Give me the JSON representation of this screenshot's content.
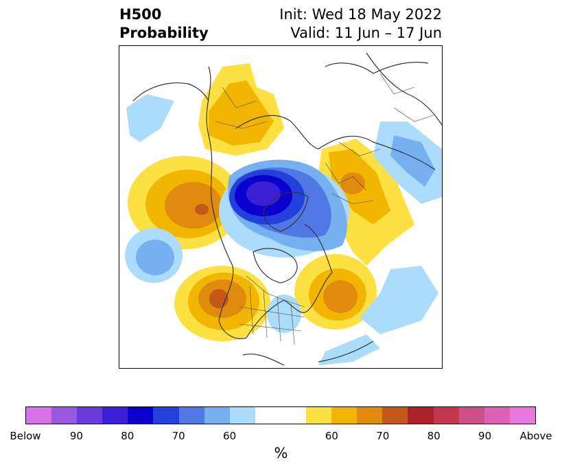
{
  "title": {
    "left_line1": "H500",
    "left_line2": "Probability",
    "right_line1": "Init: Wed 18 May 2022",
    "right_line2": "Valid: 11 Jun – 17 Jun"
  },
  "map": {
    "region": "Northern Hemisphere polar projection",
    "anomalies": [
      {
        "label": "negative center over Arctic/Greenland",
        "category": "Below",
        "peak_percent": 85
      },
      {
        "label": "negative over Bering Sea",
        "category": "Below",
        "peak_percent": 65
      },
      {
        "label": "negative over Hudson Bay/Labrador",
        "category": "Below",
        "peak_percent": 60
      },
      {
        "label": "negative over North Pacific",
        "category": "Below",
        "peak_percent": 65
      },
      {
        "label": "negative over Siberia",
        "category": "Below",
        "peak_percent": 65
      },
      {
        "label": "positive over western North America",
        "category": "Above",
        "peak_percent": 75
      },
      {
        "label": "positive over North Atlantic",
        "category": "Above",
        "peak_percent": 70
      },
      {
        "label": "positive over Gulf of Alaska",
        "category": "Above",
        "peak_percent": 70
      },
      {
        "label": "positive over Europe",
        "category": "Above",
        "peak_percent": 60
      },
      {
        "label": "positive over Scandinavia/Russia",
        "category": "Above",
        "peak_percent": 60
      }
    ]
  },
  "colorbar": {
    "colors": [
      "#d673e8",
      "#9a57e0",
      "#6a3ad8",
      "#3a1fd6",
      "#0a00cd",
      "#2440dc",
      "#4f78e4",
      "#76b0f0",
      "#abdcfb",
      "#ffffff",
      "#fde142",
      "#f2b600",
      "#e08a0e",
      "#c4571a",
      "#ad2227",
      "#c4364f",
      "#cf4e86",
      "#dc61b4",
      "#e779e0"
    ],
    "tick_labels": [
      "Below",
      "90",
      "80",
      "70",
      "60",
      "60",
      "70",
      "80",
      "90",
      "Above"
    ],
    "unit": "%"
  }
}
